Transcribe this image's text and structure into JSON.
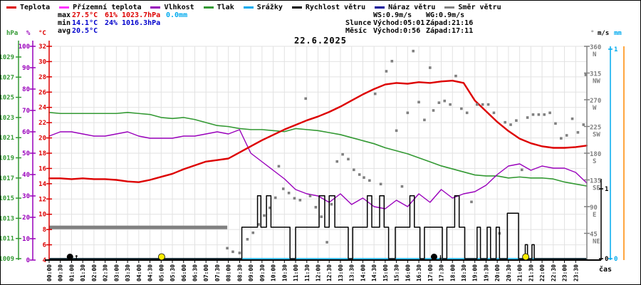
{
  "title": "22.6.2025",
  "legend": [
    {
      "label": "Teplota",
      "color": "#dd0000"
    },
    {
      "label": "Přízemní teplota",
      "color": "#ff33ff"
    },
    {
      "label": "Vlhkost",
      "color": "#9900bb"
    },
    {
      "label": "Tlak",
      "color": "#339933"
    },
    {
      "label": "Srážky",
      "color": "#00aaee"
    },
    {
      "label": "Rychlost větru",
      "color": "#000000"
    },
    {
      "label": "Náraz větru",
      "color": "#000099"
    },
    {
      "label": "Směr větru",
      "color": "#808080"
    }
  ],
  "stats": {
    "max": {
      "label": "max",
      "temp": "27.5°C",
      "humidity": "61%",
      "pressure": "1023.7hPa",
      "precip": "0.0mm"
    },
    "min": {
      "label": "min",
      "temp": "14.1°C",
      "humidity": "24%",
      "pressure": "1016.3hPa"
    },
    "avg": {
      "label": "avg",
      "temp": "20.5°C"
    }
  },
  "astro": {
    "ws": "WS:0.9m/s",
    "wg": "WG:0.9m/s",
    "sun_label": "Slunce",
    "sun_rise": "Východ:05:01",
    "sun_set": "Západ:21:16",
    "moon_label": "Měsíc",
    "moon_rise": "Východ:0:56",
    "moon_set": "Západ:17:11"
  },
  "colors": {
    "temp": "#dd0000",
    "ground_temp": "#ff33ff",
    "humidity": "#9900bb",
    "pressure": "#339933",
    "precip": "#00aaee",
    "wind_speed": "#000000",
    "wind_gust": "#000099",
    "wind_dir": "#808080",
    "grid": "#e2e2e2",
    "axis_orange": "#ff8800",
    "sun": "#ffee00",
    "moon": "#000000",
    "stat_min_value": "#0000cc"
  },
  "axes": {
    "pressure": {
      "unit": "hPa",
      "ticks": [
        1009,
        1011,
        1013,
        1015,
        1017,
        1019,
        1021,
        1023,
        1025,
        1027,
        1029
      ]
    },
    "humidity": {
      "unit": "%",
      "ticks": [
        0,
        10,
        20,
        30,
        40,
        50,
        60,
        70,
        80,
        90,
        100
      ]
    },
    "temp": {
      "unit": "°C",
      "ticks": [
        4,
        6,
        8,
        10,
        12,
        14,
        16,
        18,
        20,
        22,
        24,
        26,
        28,
        30,
        32
      ]
    },
    "dir": {
      "unit": "°",
      "ticks": [
        {
          "deg": 360,
          "label": "N"
        },
        {
          "deg": 315,
          "label": "NW"
        },
        {
          "deg": 270,
          "label": "W"
        },
        {
          "deg": 225,
          "label": "SW"
        },
        {
          "deg": 180,
          "label": "S"
        },
        {
          "deg": 135,
          "label": "SE"
        },
        {
          "deg": 90,
          "label": "E"
        },
        {
          "deg": 45,
          "label": "NE"
        }
      ]
    },
    "wind": {
      "unit": "m/s",
      "ticks": [
        0,
        1
      ]
    },
    "precip": {
      "unit": "mm",
      "ticks": [
        0,
        1
      ]
    },
    "x": {
      "label": "čas",
      "ticks": [
        "00:00",
        "00:30",
        "01:00",
        "01:30",
        "02:00",
        "02:30",
        "03:00",
        "03:30",
        "04:00",
        "04:30",
        "05:00",
        "05:30",
        "06:00",
        "06:30",
        "07:00",
        "07:30",
        "08:00",
        "08:30",
        "09:00",
        "09:30",
        "10:00",
        "10:30",
        "11:00",
        "11:30",
        "12:00",
        "12:30",
        "13:00",
        "13:30",
        "14:00",
        "14:30",
        "15:00",
        "15:30",
        "16:00",
        "16:30",
        "17:00",
        "17:30",
        "18:00",
        "18:30",
        "19:00",
        "19:30",
        "20:00",
        "20:30",
        "21:00",
        "21:30",
        "22:00",
        "22:30",
        "23:00",
        "23:30"
      ]
    }
  },
  "chart_data": {
    "type": "line",
    "title": "22.6.2025",
    "x_start_hour": 0,
    "x_step_hours": 0.5,
    "axis_ranges": {
      "temp": [
        4,
        32
      ],
      "humidity": [
        0,
        100
      ],
      "pressure": [
        1009,
        1030.2
      ],
      "dir": [
        0,
        360
      ],
      "wind_ms": [
        0,
        3
      ],
      "precip_mm": [
        0,
        1
      ]
    },
    "series": [
      {
        "name": "Teplota",
        "unit": "°C",
        "axis": "temp",
        "color": "#dd0000",
        "values": [
          14.7,
          14.7,
          14.6,
          14.7,
          14.6,
          14.6,
          14.5,
          14.3,
          14.2,
          14.5,
          14.9,
          15.3,
          15.9,
          16.4,
          16.9,
          17.1,
          17.3,
          18.1,
          18.9,
          19.7,
          20.4,
          21.1,
          21.7,
          22.3,
          22.8,
          23.4,
          24.1,
          24.9,
          25.7,
          26.4,
          27.0,
          27.2,
          27.1,
          27.3,
          27.2,
          27.4,
          27.5,
          27.2,
          24.9,
          23.5,
          22.1,
          20.9,
          19.9,
          19.3,
          18.9,
          18.7,
          18.7,
          18.8,
          19.0
        ]
      },
      {
        "name": "Vlhkost",
        "unit": "%",
        "axis": "humidity",
        "color": "#9900bb",
        "values": [
          58,
          60,
          60,
          59,
          58,
          58,
          59,
          60,
          58,
          57,
          57,
          57,
          58,
          58,
          59,
          60,
          59,
          61,
          50,
          46,
          42,
          38,
          33,
          31,
          30,
          27,
          31,
          26,
          29,
          25,
          24,
          28,
          25,
          31,
          27,
          33,
          29,
          31,
          32,
          35,
          40,
          44,
          45,
          42,
          44,
          43,
          43,
          41,
          36
        ]
      },
      {
        "name": "Tlak",
        "unit": "hPa",
        "axis": "pressure",
        "color": "#339933",
        "values": [
          1023.5,
          1023.4,
          1023.4,
          1023.4,
          1023.4,
          1023.4,
          1023.4,
          1023.5,
          1023.4,
          1023.3,
          1023.0,
          1022.9,
          1023.0,
          1022.8,
          1022.5,
          1022.2,
          1022.1,
          1021.9,
          1021.8,
          1021.8,
          1021.7,
          1021.6,
          1021.9,
          1021.8,
          1021.7,
          1021.5,
          1021.3,
          1021.0,
          1020.7,
          1020.4,
          1020.0,
          1019.7,
          1019.4,
          1019.0,
          1018.6,
          1018.2,
          1017.9,
          1017.6,
          1017.3,
          1017.2,
          1017.2,
          1017.0,
          1017.1,
          1017.0,
          1017.0,
          1016.9,
          1016.6,
          1016.4,
          1016.2
        ]
      },
      {
        "name": "Srážky",
        "unit": "mm",
        "axis": "precip",
        "color": "#00aaee",
        "values": [
          0,
          0,
          0,
          0,
          0,
          0,
          0,
          0,
          0,
          0,
          0,
          0,
          0,
          0,
          0,
          0,
          0,
          0,
          0,
          0,
          0,
          0,
          0,
          0,
          0,
          0,
          0,
          0,
          0,
          0,
          0,
          0,
          0,
          0,
          0,
          0,
          0,
          0,
          0,
          0,
          0,
          0,
          0,
          0,
          0,
          0,
          0,
          0,
          0
        ]
      }
    ],
    "wind_speed": {
      "name": "Rychlost větru",
      "unit": "m/s",
      "color": "#000000",
      "step_points": [
        [
          0,
          0
        ],
        [
          8.6,
          0.45
        ],
        [
          9.3,
          0.9
        ],
        [
          9.45,
          0.45
        ],
        [
          9.7,
          0.9
        ],
        [
          9.9,
          0.45
        ],
        [
          10.75,
          0
        ],
        [
          11.0,
          0.45
        ],
        [
          12.05,
          0.9
        ],
        [
          12.3,
          0.45
        ],
        [
          12.5,
          0.9
        ],
        [
          12.75,
          0.45
        ],
        [
          13.35,
          0
        ],
        [
          13.55,
          0.45
        ],
        [
          14.2,
          0.9
        ],
        [
          14.4,
          0.45
        ],
        [
          14.75,
          0.9
        ],
        [
          14.95,
          0.45
        ],
        [
          15.15,
          0
        ],
        [
          15.45,
          0.45
        ],
        [
          16.1,
          0.9
        ],
        [
          16.3,
          0.45
        ],
        [
          16.55,
          0
        ],
        [
          16.75,
          0.45
        ],
        [
          17.55,
          0
        ],
        [
          17.75,
          0.45
        ],
        [
          18.1,
          0.9
        ],
        [
          18.3,
          0.45
        ],
        [
          18.55,
          0
        ],
        [
          19.1,
          0.45
        ],
        [
          19.25,
          0
        ],
        [
          19.55,
          0.45
        ],
        [
          19.7,
          0
        ],
        [
          19.95,
          0.45
        ],
        [
          20.1,
          0
        ],
        [
          20.45,
          0.65
        ],
        [
          20.95,
          0
        ],
        [
          21.25,
          0.2
        ],
        [
          21.35,
          0
        ],
        [
          21.55,
          0.2
        ],
        [
          21.65,
          0
        ],
        [
          24,
          0
        ]
      ]
    },
    "wind_direction": {
      "name": "Směr větru",
      "unit": "°",
      "color": "#808080",
      "steady_bar": {
        "from_hour": 0,
        "to_hour": 7.95,
        "deg": 55
      },
      "dots": [
        [
          7.95,
          20
        ],
        [
          8.2,
          14
        ],
        [
          8.5,
          12
        ],
        [
          8.85,
          35
        ],
        [
          9.1,
          46
        ],
        [
          9.35,
          60
        ],
        [
          9.6,
          75
        ],
        [
          9.85,
          88
        ],
        [
          10.1,
          105
        ],
        [
          10.25,
          158
        ],
        [
          10.45,
          120
        ],
        [
          10.7,
          113
        ],
        [
          10.95,
          104
        ],
        [
          11.2,
          101
        ],
        [
          11.45,
          272
        ],
        [
          11.65,
          108
        ],
        [
          11.9,
          89
        ],
        [
          12.15,
          73
        ],
        [
          12.4,
          30
        ],
        [
          12.6,
          94
        ],
        [
          12.85,
          166
        ],
        [
          13.1,
          178
        ],
        [
          13.35,
          170
        ],
        [
          13.6,
          152
        ],
        [
          13.85,
          144
        ],
        [
          14.05,
          139
        ],
        [
          14.3,
          134
        ],
        [
          14.55,
          280
        ],
        [
          14.8,
          128
        ],
        [
          15.05,
          318
        ],
        [
          15.3,
          335
        ],
        [
          15.5,
          218
        ],
        [
          15.75,
          124
        ],
        [
          16.0,
          248
        ],
        [
          16.25,
          352
        ],
        [
          16.5,
          266
        ],
        [
          16.75,
          236
        ],
        [
          17.0,
          324
        ],
        [
          17.15,
          252
        ],
        [
          17.4,
          265
        ],
        [
          17.65,
          268
        ],
        [
          17.9,
          262
        ],
        [
          18.15,
          310
        ],
        [
          18.4,
          255
        ],
        [
          18.65,
          248
        ],
        [
          18.85,
          98
        ],
        [
          19.1,
          262
        ],
        [
          19.35,
          262
        ],
        [
          19.6,
          262
        ],
        [
          19.85,
          248
        ],
        [
          20.1,
          45
        ],
        [
          20.35,
          232
        ],
        [
          20.6,
          228
        ],
        [
          20.85,
          235
        ],
        [
          21.1,
          152
        ],
        [
          21.35,
          240
        ],
        [
          21.6,
          245
        ],
        [
          21.85,
          245
        ],
        [
          22.1,
          245
        ],
        [
          22.35,
          248
        ],
        [
          22.6,
          230
        ],
        [
          22.85,
          205
        ],
        [
          23.1,
          210
        ],
        [
          23.35,
          238
        ],
        [
          23.6,
          215
        ],
        [
          23.85,
          228
        ],
        [
          23.95,
          312
        ]
      ]
    },
    "markers": {
      "sun": {
        "color": "#ffee00",
        "events": [
          {
            "hour": 5.02
          },
          {
            "hour": 21.27
          }
        ]
      },
      "moon": {
        "color": "#000000",
        "events": [
          {
            "hour": 0.93,
            "arrow": "↑"
          },
          {
            "hour": 17.18,
            "arrow": "↓"
          }
        ]
      }
    }
  }
}
